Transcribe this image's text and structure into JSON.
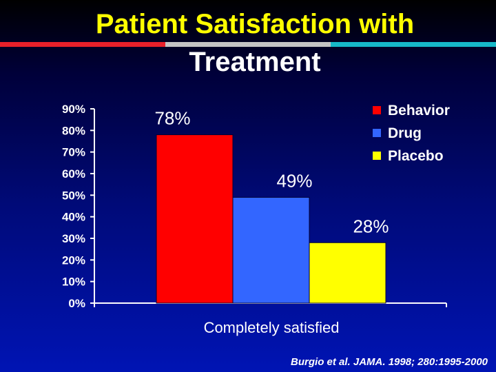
{
  "slide": {
    "title_line1": "Patient Satisfaction with",
    "title_line2": "Treatment",
    "citation": "Burgio et al. JAMA. 1998; 280:1995-2000"
  },
  "colors": {
    "title": "#ffff00",
    "rule": [
      "#e8202a",
      "#c4c4c4",
      "#16b8c8"
    ]
  },
  "chart_data": {
    "type": "bar",
    "title": "Patient Satisfaction with Treatment",
    "categories": [
      "Completely satisfied"
    ],
    "xlabel": "Completely satisfied",
    "ylabel": "",
    "ylim": [
      0,
      90
    ],
    "yticks": [
      "0%",
      "10%",
      "20%",
      "30%",
      "40%",
      "50%",
      "60%",
      "70%",
      "80%",
      "90%"
    ],
    "series": [
      {
        "name": "Behavior",
        "values": [
          78
        ],
        "label": "78%",
        "color": "#ff0000"
      },
      {
        "name": "Drug",
        "values": [
          49
        ],
        "label": "49%",
        "color": "#3366ff"
      },
      {
        "name": "Placebo",
        "values": [
          28
        ],
        "label": "28%",
        "color": "#ffff00"
      }
    ],
    "legend_position": "top-right",
    "grid": false
  }
}
